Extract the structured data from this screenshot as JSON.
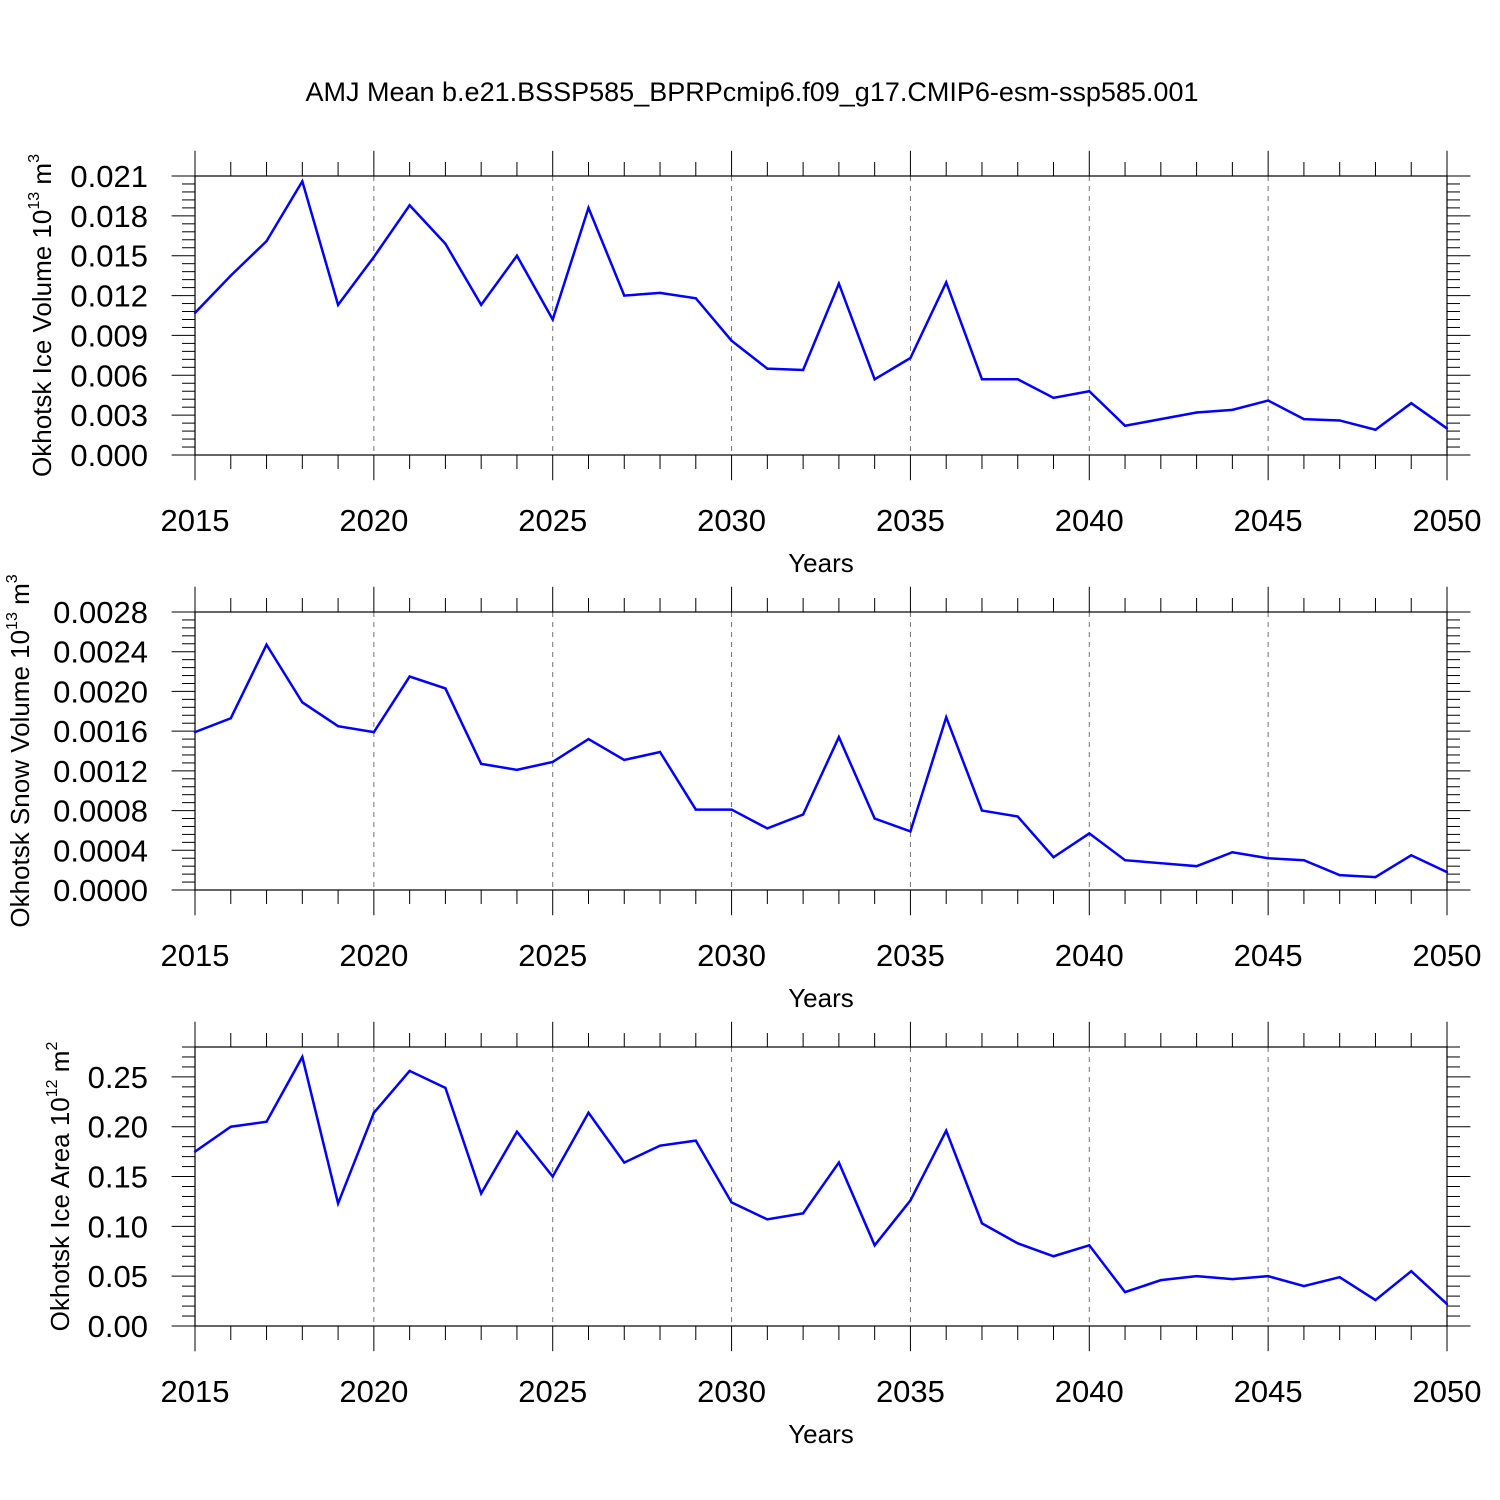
{
  "title": "AMJ Mean b.e21.BSSP585_BPRPcmip6.f09_g17.CMIP6-esm-ssp585.001",
  "colors": {
    "series": "#0000ff",
    "axis": "#000000",
    "grid": "#000000"
  },
  "chart_data": [
    {
      "type": "line",
      "ylabel": {
        "text": "Okhotsk Ice Volume 10",
        "exp": "13",
        "unit": " m",
        "unit_exp": "3"
      },
      "xlabel": "Years",
      "xlim": [
        2015,
        2050
      ],
      "ylim": [
        0,
        0.021
      ],
      "ylim_top": 0.021,
      "yticks": [
        0,
        0.003,
        0.006,
        0.009,
        0.012,
        0.015,
        0.018,
        0.021
      ],
      "ytick_labels": [
        "0.000",
        "0.003",
        "0.006",
        "0.009",
        "0.012",
        "0.015",
        "0.018",
        "0.021"
      ],
      "xticks": [
        2015,
        2020,
        2025,
        2030,
        2035,
        2040,
        2045,
        2050
      ],
      "xtick_labels": [
        "2015",
        "2020",
        "2025",
        "2030",
        "2035",
        "2040",
        "2045",
        "2050"
      ],
      "grid": "vertical dashed at major x ticks",
      "x": [
        2015,
        2016,
        2017,
        2018,
        2019,
        2020,
        2021,
        2022,
        2023,
        2024,
        2025,
        2026,
        2027,
        2028,
        2029,
        2030,
        2031,
        2032,
        2033,
        2034,
        2035,
        2036,
        2037,
        2038,
        2039,
        2040,
        2041,
        2042,
        2043,
        2044,
        2045,
        2046,
        2047,
        2048,
        2049,
        2050
      ],
      "values": [
        0.0107,
        0.0135,
        0.0161,
        0.0206,
        0.0113,
        0.0149,
        0.0188,
        0.0159,
        0.0113,
        0.015,
        0.0102,
        0.0186,
        0.012,
        0.0122,
        0.0118,
        0.0086,
        0.0065,
        0.0064,
        0.0129,
        0.0057,
        0.0073,
        0.013,
        0.0057,
        0.0057,
        0.0043,
        0.0048,
        0.0022,
        0.0027,
        0.0032,
        0.0034,
        0.0041,
        0.0027,
        0.0026,
        0.0019,
        0.0039,
        0.002
      ]
    },
    {
      "type": "line",
      "ylabel": {
        "text": "Okhotsk Snow Volume 10",
        "exp": "13",
        "unit": " m",
        "unit_exp": "3"
      },
      "xlabel": "Years",
      "xlim": [
        2015,
        2050
      ],
      "ylim": [
        0,
        0.0028
      ],
      "ylim_top": 0.0028,
      "yticks": [
        0,
        0.0004,
        0.0008,
        0.0012,
        0.0016,
        0.002,
        0.0024,
        0.0028
      ],
      "ytick_labels": [
        "0.0000",
        "0.0004",
        "0.0008",
        "0.0012",
        "0.0016",
        "0.0020",
        "0.0024",
        "0.0028"
      ],
      "xticks": [
        2015,
        2020,
        2025,
        2030,
        2035,
        2040,
        2045,
        2050
      ],
      "xtick_labels": [
        "2015",
        "2020",
        "2025",
        "2030",
        "2035",
        "2040",
        "2045",
        "2050"
      ],
      "grid": "vertical dashed at major x ticks",
      "x": [
        2015,
        2016,
        2017,
        2018,
        2019,
        2020,
        2021,
        2022,
        2023,
        2024,
        2025,
        2026,
        2027,
        2028,
        2029,
        2030,
        2031,
        2032,
        2033,
        2034,
        2035,
        2036,
        2037,
        2038,
        2039,
        2040,
        2041,
        2042,
        2043,
        2044,
        2045,
        2046,
        2047,
        2048,
        2049,
        2050
      ],
      "values": [
        0.00159,
        0.00173,
        0.00247,
        0.00189,
        0.00165,
        0.00159,
        0.00215,
        0.00203,
        0.00127,
        0.00121,
        0.00129,
        0.00152,
        0.00131,
        0.00139,
        0.00081,
        0.00081,
        0.00062,
        0.00076,
        0.00154,
        0.00072,
        0.00059,
        0.00174,
        0.0008,
        0.00074,
        0.00033,
        0.00057,
        0.0003,
        0.00027,
        0.00024,
        0.00038,
        0.00032,
        0.0003,
        0.00015,
        0.00013,
        0.00035,
        0.00018
      ]
    },
    {
      "type": "line",
      "ylabel": {
        "text": "Okhotsk Ice Area 10",
        "exp": "12",
        "unit": " m",
        "unit_exp": "2"
      },
      "xlabel": "Years",
      "xlim": [
        2015,
        2050
      ],
      "ylim": [
        0,
        0.28
      ],
      "ylim_top": 0.28,
      "yticks": [
        0,
        0.05,
        0.1,
        0.15,
        0.2,
        0.25
      ],
      "ytick_labels": [
        "0.00",
        "0.05",
        "0.10",
        "0.15",
        "0.20",
        "0.25"
      ],
      "xticks": [
        2015,
        2020,
        2025,
        2030,
        2035,
        2040,
        2045,
        2050
      ],
      "xtick_labels": [
        "2015",
        "2020",
        "2025",
        "2030",
        "2035",
        "2040",
        "2045",
        "2050"
      ],
      "grid": "vertical dashed at major x ticks",
      "x": [
        2015,
        2016,
        2017,
        2018,
        2019,
        2020,
        2021,
        2022,
        2023,
        2024,
        2025,
        2026,
        2027,
        2028,
        2029,
        2030,
        2031,
        2032,
        2033,
        2034,
        2035,
        2036,
        2037,
        2038,
        2039,
        2040,
        2041,
        2042,
        2043,
        2044,
        2045,
        2046,
        2047,
        2048,
        2049,
        2050
      ],
      "values": [
        0.175,
        0.2,
        0.205,
        0.27,
        0.123,
        0.214,
        0.256,
        0.239,
        0.133,
        0.195,
        0.15,
        0.214,
        0.164,
        0.181,
        0.186,
        0.124,
        0.107,
        0.113,
        0.164,
        0.081,
        0.126,
        0.196,
        0.103,
        0.083,
        0.07,
        0.081,
        0.034,
        0.046,
        0.05,
        0.047,
        0.05,
        0.04,
        0.049,
        0.026,
        0.055,
        0.022
      ]
    }
  ]
}
